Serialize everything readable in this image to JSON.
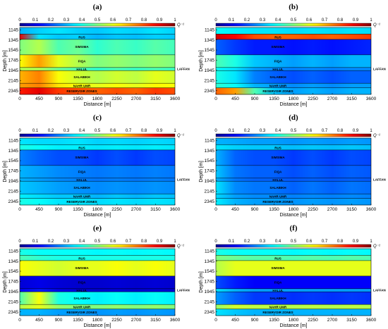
{
  "chart_data": {
    "type": "heatmap",
    "layout": "3x2 grid",
    "colormap": [
      "#00008f",
      "#0000ff",
      "#0080ff",
      "#00ffff",
      "#80ff80",
      "#ffff00",
      "#ff8000",
      "#ff0000",
      "#800000"
    ],
    "colorbar": {
      "ticks": [
        "0",
        "0.1",
        "0.2",
        "0.3",
        "0.4",
        "0.5",
        "0.6",
        "0.7",
        "0.8",
        "0.9",
        "1"
      ],
      "label": "Q⁻¹",
      "range": [
        0,
        1
      ]
    },
    "x_axis": {
      "label": "Distance [m]",
      "ticks": [
        "0",
        "450",
        "900",
        "1350",
        "1800",
        "2250",
        "2700",
        "3150",
        "3600"
      ],
      "range": [
        0,
        3600
      ]
    },
    "y_axis": {
      "label": "Depth [m]",
      "ticks": [
        "1145",
        "1345",
        "1545",
        "1745",
        "1945",
        "2145",
        "2345"
      ],
      "range": [
        1100,
        2420
      ]
    },
    "formation_boundaries_m": [
      1230,
      1335,
      1640,
      1890,
      1950,
      2200,
      2290
    ],
    "formations": [
      {
        "name": "RUS",
        "depth": 1290
      },
      {
        "name": "SIMSIMA",
        "depth": 1480
      },
      {
        "name": "FIQA",
        "depth": 1765
      },
      {
        "name": "HALUL",
        "depth": 1925
      },
      {
        "name": "SALABIKH",
        "depth": 2080
      },
      {
        "name": "NAHR UMR",
        "depth": 2250
      },
      {
        "name": "RESERVOIR ZONES",
        "depth": 2355
      }
    ],
    "side_label": "LAFFAN",
    "panels": [
      {
        "label": "(a)",
        "layers": [
          {
            "top": 1100,
            "bottom": 1230,
            "values": [
              0.3,
              0.33,
              0.35,
              0.33,
              0.32,
              0.34,
              0.33,
              0.35,
              0.33
            ]
          },
          {
            "top": 1230,
            "bottom": 1335,
            "values": [
              0.9,
              0.35,
              0.32,
              0.33,
              0.3,
              0.32,
              0.31,
              0.33,
              0.32
            ]
          },
          {
            "top": 1335,
            "bottom": 1640,
            "values": [
              0.5,
              0.55,
              0.45,
              0.48,
              0.42,
              0.45,
              0.43,
              0.46,
              0.44
            ]
          },
          {
            "top": 1640,
            "bottom": 1890,
            "values": [
              0.62,
              0.72,
              0.6,
              0.55,
              0.5,
              0.52,
              0.5,
              0.52,
              0.5
            ]
          },
          {
            "top": 1890,
            "bottom": 1950,
            "values": [
              0.55,
              0.55,
              0.48,
              0.45,
              0.42,
              0.45,
              0.43,
              0.45,
              0.43
            ]
          },
          {
            "top": 1950,
            "bottom": 2200,
            "values": [
              0.7,
              0.75,
              0.62,
              0.58,
              0.55,
              0.58,
              0.56,
              0.6,
              0.58
            ]
          },
          {
            "top": 2200,
            "bottom": 2290,
            "values": [
              0.72,
              0.75,
              0.65,
              0.62,
              0.6,
              0.62,
              0.6,
              0.63,
              0.62
            ]
          },
          {
            "top": 2290,
            "bottom": 2420,
            "values": [
              0.85,
              0.9,
              0.82,
              0.8,
              0.78,
              0.8,
              0.78,
              0.82,
              0.8
            ]
          }
        ]
      },
      {
        "label": "(b)",
        "layers": [
          {
            "top": 1100,
            "bottom": 1230,
            "values": [
              0.38,
              0.36,
              0.35,
              0.35,
              0.34,
              0.35,
              0.34,
              0.35,
              0.34
            ]
          },
          {
            "top": 1230,
            "bottom": 1335,
            "values": [
              0.92,
              0.88,
              0.8,
              0.78,
              0.78,
              0.8,
              0.78,
              0.8,
              0.82
            ]
          },
          {
            "top": 1335,
            "bottom": 1640,
            "values": [
              0.22,
              0.18,
              0.15,
              0.15,
              0.14,
              0.15,
              0.14,
              0.15,
              0.16
            ]
          },
          {
            "top": 1640,
            "bottom": 1890,
            "values": [
              0.45,
              0.4,
              0.32,
              0.3,
              0.28,
              0.3,
              0.28,
              0.3,
              0.3
            ]
          },
          {
            "top": 1890,
            "bottom": 1950,
            "values": [
              0.38,
              0.35,
              0.28,
              0.26,
              0.25,
              0.26,
              0.25,
              0.26,
              0.26
            ]
          },
          {
            "top": 1950,
            "bottom": 2200,
            "values": [
              0.4,
              0.35,
              0.25,
              0.22,
              0.2,
              0.22,
              0.2,
              0.22,
              0.22
            ]
          },
          {
            "top": 2200,
            "bottom": 2290,
            "values": [
              0.42,
              0.38,
              0.3,
              0.28,
              0.26,
              0.28,
              0.26,
              0.28,
              0.28
            ]
          },
          {
            "top": 2290,
            "bottom": 2420,
            "values": [
              0.78,
              0.72,
              0.45,
              0.32,
              0.28,
              0.3,
              0.28,
              0.3,
              0.3
            ]
          }
        ]
      },
      {
        "label": "(c)",
        "layers": [
          {
            "top": 1100,
            "bottom": 1230,
            "values": [
              0.35,
              0.34,
              0.34,
              0.35,
              0.33,
              0.34,
              0.33,
              0.34,
              0.33
            ]
          },
          {
            "top": 1230,
            "bottom": 1335,
            "values": [
              0.4,
              0.38,
              0.36,
              0.36,
              0.35,
              0.36,
              0.35,
              0.36,
              0.35
            ]
          },
          {
            "top": 1335,
            "bottom": 1640,
            "values": [
              0.25,
              0.22,
              0.2,
              0.2,
              0.18,
              0.2,
              0.18,
              0.2,
              0.19
            ]
          },
          {
            "top": 1640,
            "bottom": 1890,
            "values": [
              0.3,
              0.28,
              0.26,
              0.25,
              0.24,
              0.25,
              0.24,
              0.25,
              0.24
            ]
          },
          {
            "top": 1890,
            "bottom": 1950,
            "values": [
              0.3,
              0.28,
              0.26,
              0.25,
              0.24,
              0.25,
              0.24,
              0.25,
              0.24
            ]
          },
          {
            "top": 1950,
            "bottom": 2200,
            "values": [
              0.32,
              0.3,
              0.28,
              0.27,
              0.26,
              0.27,
              0.26,
              0.27,
              0.26
            ]
          },
          {
            "top": 2200,
            "bottom": 2290,
            "values": [
              0.36,
              0.34,
              0.32,
              0.32,
              0.3,
              0.32,
              0.3,
              0.32,
              0.31
            ]
          },
          {
            "top": 2290,
            "bottom": 2420,
            "values": [
              0.4,
              0.38,
              0.35,
              0.35,
              0.34,
              0.35,
              0.34,
              0.35,
              0.34
            ]
          }
        ]
      },
      {
        "label": "(d)",
        "layers": [
          {
            "top": 1100,
            "bottom": 1230,
            "values": [
              0.3,
              0.29,
              0.28,
              0.28,
              0.27,
              0.28,
              0.27,
              0.28,
              0.27
            ]
          },
          {
            "top": 1230,
            "bottom": 1335,
            "values": [
              0.35,
              0.33,
              0.32,
              0.32,
              0.31,
              0.32,
              0.31,
              0.32,
              0.31
            ]
          },
          {
            "top": 1335,
            "bottom": 1640,
            "values": [
              0.3,
              0.22,
              0.2,
              0.2,
              0.18,
              0.2,
              0.18,
              0.2,
              0.19
            ]
          },
          {
            "top": 1640,
            "bottom": 1890,
            "values": [
              0.32,
              0.24,
              0.22,
              0.22,
              0.2,
              0.22,
              0.2,
              0.22,
              0.21
            ]
          },
          {
            "top": 1890,
            "bottom": 1950,
            "values": [
              0.3,
              0.24,
              0.22,
              0.22,
              0.21,
              0.22,
              0.21,
              0.22,
              0.21
            ]
          },
          {
            "top": 1950,
            "bottom": 2200,
            "values": [
              0.35,
              0.26,
              0.24,
              0.24,
              0.22,
              0.24,
              0.22,
              0.24,
              0.23
            ]
          },
          {
            "top": 2200,
            "bottom": 2290,
            "values": [
              0.34,
              0.28,
              0.26,
              0.26,
              0.25,
              0.26,
              0.25,
              0.26,
              0.25
            ]
          },
          {
            "top": 2290,
            "bottom": 2420,
            "values": [
              0.36,
              0.3,
              0.28,
              0.28,
              0.27,
              0.28,
              0.27,
              0.28,
              0.27
            ]
          }
        ]
      },
      {
        "label": "(e)",
        "layers": [
          {
            "top": 1100,
            "bottom": 1230,
            "values": [
              0.4,
              0.38,
              0.38,
              0.38,
              0.37,
              0.38,
              0.37,
              0.38,
              0.37
            ]
          },
          {
            "top": 1230,
            "bottom": 1335,
            "values": [
              0.45,
              0.42,
              0.4,
              0.4,
              0.4,
              0.4,
              0.4,
              0.4,
              0.4
            ]
          },
          {
            "top": 1335,
            "bottom": 1640,
            "values": [
              0.62,
              0.6,
              0.58,
              0.6,
              0.6,
              0.62,
              0.6,
              0.62,
              0.6
            ]
          },
          {
            "top": 1640,
            "bottom": 1890,
            "values": [
              0.08,
              0.1,
              0.08,
              0.07,
              0.07,
              0.08,
              0.07,
              0.08,
              0.07
            ]
          },
          {
            "top": 1890,
            "bottom": 1950,
            "values": [
              0.12,
              0.15,
              0.1,
              0.08,
              0.07,
              0.08,
              0.07,
              0.08,
              0.07
            ]
          },
          {
            "top": 1950,
            "bottom": 2200,
            "values": [
              0.45,
              0.62,
              0.4,
              0.38,
              0.36,
              0.38,
              0.36,
              0.38,
              0.36
            ]
          },
          {
            "top": 2200,
            "bottom": 2290,
            "values": [
              0.55,
              0.6,
              0.52,
              0.5,
              0.5,
              0.52,
              0.5,
              0.52,
              0.5
            ]
          },
          {
            "top": 2290,
            "bottom": 2420,
            "values": [
              0.3,
              0.3,
              0.28,
              0.28,
              0.27,
              0.28,
              0.27,
              0.28,
              0.27
            ]
          }
        ]
      },
      {
        "label": "(f)",
        "layers": [
          {
            "top": 1100,
            "bottom": 1230,
            "values": [
              0.4,
              0.38,
              0.38,
              0.38,
              0.37,
              0.38,
              0.37,
              0.38,
              0.37
            ]
          },
          {
            "top": 1230,
            "bottom": 1335,
            "values": [
              0.5,
              0.48,
              0.46,
              0.46,
              0.45,
              0.46,
              0.45,
              0.46,
              0.45
            ]
          },
          {
            "top": 1335,
            "bottom": 1640,
            "values": [
              0.55,
              0.6,
              0.6,
              0.6,
              0.6,
              0.6,
              0.6,
              0.6,
              0.6
            ]
          },
          {
            "top": 1640,
            "bottom": 1890,
            "values": [
              0.2,
              0.15,
              0.12,
              0.12,
              0.12,
              0.12,
              0.12,
              0.12,
              0.12
            ]
          },
          {
            "top": 1890,
            "bottom": 1950,
            "values": [
              0.35,
              0.3,
              0.28,
              0.28,
              0.28,
              0.28,
              0.28,
              0.28,
              0.28
            ]
          },
          {
            "top": 1950,
            "bottom": 2200,
            "values": [
              0.28,
              0.22,
              0.18,
              0.18,
              0.17,
              0.18,
              0.17,
              0.18,
              0.17
            ]
          },
          {
            "top": 2200,
            "bottom": 2290,
            "values": [
              0.52,
              0.58,
              0.56,
              0.56,
              0.55,
              0.56,
              0.55,
              0.56,
              0.55
            ]
          },
          {
            "top": 2290,
            "bottom": 2420,
            "values": [
              0.35,
              0.32,
              0.3,
              0.3,
              0.3,
              0.3,
              0.3,
              0.3,
              0.3
            ]
          }
        ]
      }
    ]
  }
}
